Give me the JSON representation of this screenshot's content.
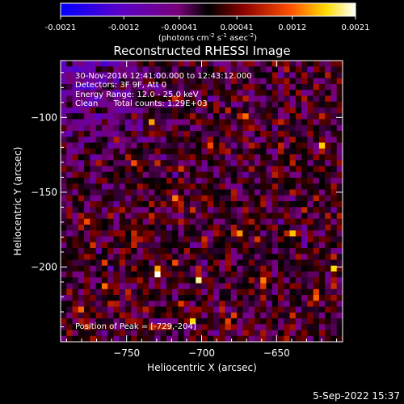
{
  "colorbar": {
    "ticks": [
      "-0.0021",
      "-0.0012",
      "-0.00041",
      "0.00041",
      "0.0012",
      "0.0021"
    ],
    "unit_main": "(photons cm",
    "unit_sup1": "-2",
    "unit_mid": " s",
    "unit_sup2": "-1",
    "unit_end": " asec",
    "unit_sup3": "-2",
    "unit_close": ")",
    "min": -0.0021,
    "max": 0.0021
  },
  "image": {
    "title": "Reconstructed RHESSI Image",
    "info_lines": [
      "30-Nov-2016 12:41:00.000 to 12:43:12.000",
      "Detectors: 3F 9F, Att 0",
      "Energy Range: 12.0 - 25.0 keV",
      "Clean      Total counts: 1.29E+03"
    ],
    "peak_label": "Position of Peak = [-729,-204]",
    "footer_date": "5-Sep-2022 15:37"
  },
  "chart_data": {
    "type": "heatmap",
    "title": "Reconstructed RHESSI Image",
    "xlabel": "Heliocentric X (arcsec)",
    "ylabel": "Heliocentric Y (arcsec)",
    "xlim": [
      -794,
      -606
    ],
    "ylim": [
      -250,
      -62
    ],
    "xticks": [
      -750,
      -700,
      -650
    ],
    "yticks": [
      -100,
      -150,
      -200
    ],
    "peak": [
      -729,
      -204
    ],
    "sources": [
      [
        -729,
        -204
      ],
      [
        -762,
        -213
      ],
      [
        -701,
        -208
      ],
      [
        -619,
        -121
      ],
      [
        -717,
        -155
      ],
      [
        -676,
        -179
      ],
      [
        -640,
        -178
      ],
      [
        -693,
        -121
      ],
      [
        -658,
        -211
      ],
      [
        -780,
        -228
      ],
      [
        -745,
        -130
      ],
      [
        -610,
        -200
      ],
      [
        -705,
        -236
      ],
      [
        -745,
        -178
      ],
      [
        -775,
        -170
      ],
      [
        -650,
        -140
      ],
      [
        -622,
        -220
      ],
      [
        -683,
        -237
      ],
      [
        -733,
        -103
      ],
      [
        -672,
        -100
      ]
    ],
    "colormap": [
      "#0000ff",
      "#5a00c8",
      "#780078",
      "#000000",
      "#8c0000",
      "#ff5000",
      "#ffdc00",
      "#ffffff"
    ],
    "grid": false
  }
}
